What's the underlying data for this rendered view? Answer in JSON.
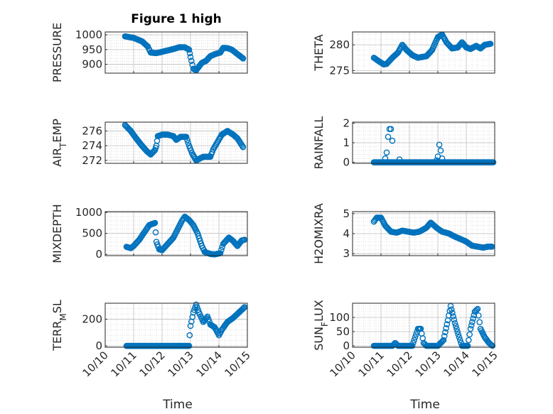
{
  "chart_data": [
    {
      "type": "scatter",
      "title": "Figure 1 high",
      "ylabel": "PRESSURE",
      "xlabel": "",
      "xlim": [
        0,
        5
      ],
      "ylim": [
        870,
        1010
      ],
      "yticks": [
        900,
        950,
        1000
      ],
      "yticklabels": [
        "900",
        "950",
        "1000"
      ],
      "keyframes": [
        [
          0.7,
          995
        ],
        [
          1.0,
          990
        ],
        [
          1.3,
          978
        ],
        [
          1.5,
          960
        ],
        [
          1.6,
          940
        ],
        [
          1.8,
          938
        ],
        [
          2.1,
          945
        ],
        [
          2.4,
          952
        ],
        [
          2.6,
          958
        ],
        [
          2.8,
          958
        ],
        [
          2.95,
          950
        ],
        [
          3.0,
          925
        ],
        [
          3.1,
          885
        ],
        [
          3.2,
          880
        ],
        [
          3.4,
          905
        ],
        [
          3.55,
          912
        ],
        [
          3.7,
          928
        ],
        [
          3.9,
          936
        ],
        [
          4.05,
          940
        ],
        [
          4.15,
          956
        ],
        [
          4.3,
          955
        ],
        [
          4.45,
          950
        ],
        [
          4.65,
          935
        ],
        [
          4.85,
          920
        ]
      ]
    },
    {
      "type": "scatter",
      "title": "",
      "ylabel": "THETA",
      "xlabel": "",
      "xlim": [
        0,
        5
      ],
      "ylim": [
        274.5,
        282.5
      ],
      "yticks": [
        275,
        280
      ],
      "yticklabels": [
        "275",
        "280"
      ],
      "keyframes": [
        [
          0.75,
          277.5
        ],
        [
          0.9,
          276.9
        ],
        [
          1.1,
          276.2
        ],
        [
          1.2,
          276.3
        ],
        [
          1.4,
          277.5
        ],
        [
          1.6,
          278.5
        ],
        [
          1.75,
          280
        ],
        [
          1.9,
          279
        ],
        [
          2.1,
          278
        ],
        [
          2.3,
          277.5
        ],
        [
          2.6,
          277.8
        ],
        [
          2.8,
          279
        ],
        [
          3.0,
          281.5
        ],
        [
          3.15,
          282
        ],
        [
          3.3,
          280.5
        ],
        [
          3.5,
          279.3
        ],
        [
          3.7,
          279.5
        ],
        [
          3.85,
          280.5
        ],
        [
          4.0,
          279.5
        ],
        [
          4.15,
          279.2
        ],
        [
          4.35,
          279.8
        ],
        [
          4.5,
          279.3
        ],
        [
          4.65,
          280
        ],
        [
          4.85,
          280.2
        ]
      ]
    },
    {
      "type": "scatter",
      "title": "",
      "ylabel": "AIR_TEMP",
      "ylabel_main": "AIR",
      "ylabel_sub": "T",
      "ylabel_rest": "EMP",
      "xlabel": "",
      "xlim": [
        0,
        5
      ],
      "ylim": [
        271.6,
        277.2
      ],
      "yticks": [
        272,
        274,
        276
      ],
      "yticklabels": [
        "272",
        "274",
        "276"
      ],
      "keyframes": [
        [
          0.7,
          276.8
        ],
        [
          0.9,
          276
        ],
        [
          1.05,
          275.2
        ],
        [
          1.25,
          274.2
        ],
        [
          1.45,
          273.3
        ],
        [
          1.6,
          272.8
        ],
        [
          1.75,
          273.4
        ],
        [
          1.8,
          274
        ],
        [
          1.85,
          275.3
        ],
        [
          2.0,
          275.5
        ],
        [
          2.2,
          275.5
        ],
        [
          2.4,
          275.3
        ],
        [
          2.5,
          274.8
        ],
        [
          2.65,
          275.2
        ],
        [
          2.85,
          275.2
        ],
        [
          2.95,
          274
        ],
        [
          3.05,
          273
        ],
        [
          3.2,
          272
        ],
        [
          3.45,
          272.5
        ],
        [
          3.7,
          272.5
        ],
        [
          3.8,
          273.5
        ],
        [
          3.95,
          274.5
        ],
        [
          4.1,
          275.5
        ],
        [
          4.3,
          276
        ],
        [
          4.5,
          275.5
        ],
        [
          4.65,
          275
        ],
        [
          4.85,
          273.8
        ]
      ]
    },
    {
      "type": "scatter",
      "title": "",
      "ylabel": "RAINFALL",
      "xlabel": "",
      "xlim": [
        0,
        5
      ],
      "ylim": [
        -0.05,
        2.05
      ],
      "yticks": [
        0,
        1,
        2
      ],
      "yticklabels": [
        "0",
        "1",
        "2"
      ],
      "keyframes": [
        [
          0.75,
          0
        ],
        [
          4.95,
          0
        ]
      ],
      "spikes": [
        [
          1.2,
          0.5
        ],
        [
          1.25,
          1.3
        ],
        [
          1.3,
          1.7
        ],
        [
          1.35,
          1.7
        ],
        [
          1.4,
          1.1
        ],
        [
          1.15,
          0.2
        ],
        [
          1.65,
          0.15
        ],
        [
          3.0,
          0.3
        ],
        [
          3.05,
          0.9
        ],
        [
          3.1,
          0.6
        ],
        [
          3.15,
          0.2
        ],
        [
          2.95,
          0.1
        ]
      ]
    },
    {
      "type": "scatter",
      "title": "",
      "ylabel": "MIXDEPTH",
      "xlabel": "",
      "xlim": [
        0,
        5
      ],
      "ylim": [
        -30,
        1020
      ],
      "yticks": [
        0,
        500,
        1000
      ],
      "yticklabels": [
        "0",
        "500",
        "1000"
      ],
      "keyframes": [
        [
          0.75,
          180
        ],
        [
          0.9,
          150
        ],
        [
          1.0,
          200
        ],
        [
          1.2,
          350
        ],
        [
          1.4,
          550
        ],
        [
          1.55,
          700
        ],
        [
          1.75,
          750
        ],
        [
          1.8,
          300
        ],
        [
          1.9,
          120
        ],
        [
          2.0,
          100
        ],
        [
          2.2,
          250
        ],
        [
          2.4,
          400
        ],
        [
          2.55,
          600
        ],
        [
          2.7,
          800
        ],
        [
          2.8,
          900
        ],
        [
          2.95,
          820
        ],
        [
          3.1,
          700
        ],
        [
          3.25,
          500
        ],
        [
          3.4,
          200
        ],
        [
          3.5,
          60
        ],
        [
          3.7,
          10
        ],
        [
          3.85,
          0
        ],
        [
          4.05,
          30
        ],
        [
          4.15,
          250
        ],
        [
          4.35,
          400
        ],
        [
          4.5,
          320
        ],
        [
          4.65,
          200
        ],
        [
          4.8,
          330
        ],
        [
          4.9,
          350
        ]
      ]
    },
    {
      "type": "scatter",
      "title": "",
      "ylabel": "H2OMIXRA",
      "xlabel": "",
      "xlim": [
        0,
        5
      ],
      "ylim": [
        2.9,
        5.1
      ],
      "yticks": [
        3,
        4,
        5
      ],
      "yticklabels": [
        "3",
        "4",
        "5"
      ],
      "keyframes": [
        [
          0.75,
          4.6
        ],
        [
          0.85,
          4.8
        ],
        [
          1.0,
          4.8
        ],
        [
          1.15,
          4.4
        ],
        [
          1.35,
          4.1
        ],
        [
          1.55,
          4.05
        ],
        [
          1.75,
          4.15
        ],
        [
          1.95,
          4.1
        ],
        [
          2.15,
          4.05
        ],
        [
          2.35,
          4.1
        ],
        [
          2.6,
          4.3
        ],
        [
          2.75,
          4.55
        ],
        [
          2.95,
          4.3
        ],
        [
          3.15,
          4.1
        ],
        [
          3.4,
          4.0
        ],
        [
          3.6,
          3.85
        ],
        [
          3.85,
          3.7
        ],
        [
          4.0,
          3.6
        ],
        [
          4.2,
          3.4
        ],
        [
          4.4,
          3.35
        ],
        [
          4.6,
          3.3
        ],
        [
          4.75,
          3.35
        ],
        [
          4.9,
          3.35
        ]
      ]
    },
    {
      "type": "scatter",
      "title": "",
      "ylabel": "TERR_MSL",
      "ylabel_main": "TERR",
      "ylabel_sub": "M",
      "ylabel_rest": "SL",
      "xlabel": "Time",
      "xlim": [
        0,
        5
      ],
      "ylim": [
        -10,
        320
      ],
      "yticks": [
        0,
        200
      ],
      "yticklabels": [
        "0",
        "200"
      ],
      "xticks": [
        0,
        1,
        2,
        3,
        4,
        5
      ],
      "xticklabels": [
        "10/10",
        "10/11",
        "10/12",
        "10/13",
        "10/14",
        "10/15"
      ],
      "keyframes": [
        [
          0.75,
          0
        ],
        [
          2.95,
          0
        ],
        [
          2.97,
          80
        ],
        [
          3.0,
          150
        ],
        [
          3.1,
          250
        ],
        [
          3.2,
          310
        ],
        [
          3.3,
          250
        ],
        [
          3.45,
          180
        ],
        [
          3.6,
          220
        ],
        [
          3.7,
          160
        ],
        [
          3.85,
          140
        ],
        [
          4.0,
          80
        ],
        [
          4.1,
          120
        ],
        [
          4.3,
          180
        ],
        [
          4.5,
          210
        ],
        [
          4.7,
          250
        ],
        [
          4.9,
          290
        ]
      ]
    },
    {
      "type": "scatter",
      "title": "",
      "ylabel": "SUN_FLUX",
      "ylabel_main": "SUN",
      "ylabel_sub": "F",
      "ylabel_rest": "LUX",
      "xlabel": "Time",
      "xlim": [
        0,
        5
      ],
      "ylim": [
        -5,
        150
      ],
      "yticks": [
        0,
        50,
        100
      ],
      "yticklabels": [
        "0",
        "50",
        "100"
      ],
      "xticks": [
        0,
        1,
        2,
        3,
        4,
        5
      ],
      "xticklabels": [
        "10/10",
        "10/11",
        "10/12",
        "10/13",
        "10/14",
        "10/15"
      ],
      "keyframes": [
        [
          0.75,
          0
        ],
        [
          1.4,
          0
        ],
        [
          1.5,
          10
        ],
        [
          1.6,
          0
        ],
        [
          2.1,
          0
        ],
        [
          2.2,
          30
        ],
        [
          2.3,
          60
        ],
        [
          2.4,
          60
        ],
        [
          2.5,
          10
        ],
        [
          2.6,
          0
        ],
        [
          3.0,
          0
        ],
        [
          3.2,
          20
        ],
        [
          3.35,
          90
        ],
        [
          3.45,
          140
        ],
        [
          3.6,
          80
        ],
        [
          3.75,
          30
        ],
        [
          3.85,
          0
        ],
        [
          4.05,
          0
        ],
        [
          4.15,
          60
        ],
        [
          4.3,
          120
        ],
        [
          4.4,
          130
        ],
        [
          4.5,
          60
        ],
        [
          4.65,
          30
        ],
        [
          4.8,
          10
        ],
        [
          4.92,
          0
        ]
      ]
    }
  ]
}
